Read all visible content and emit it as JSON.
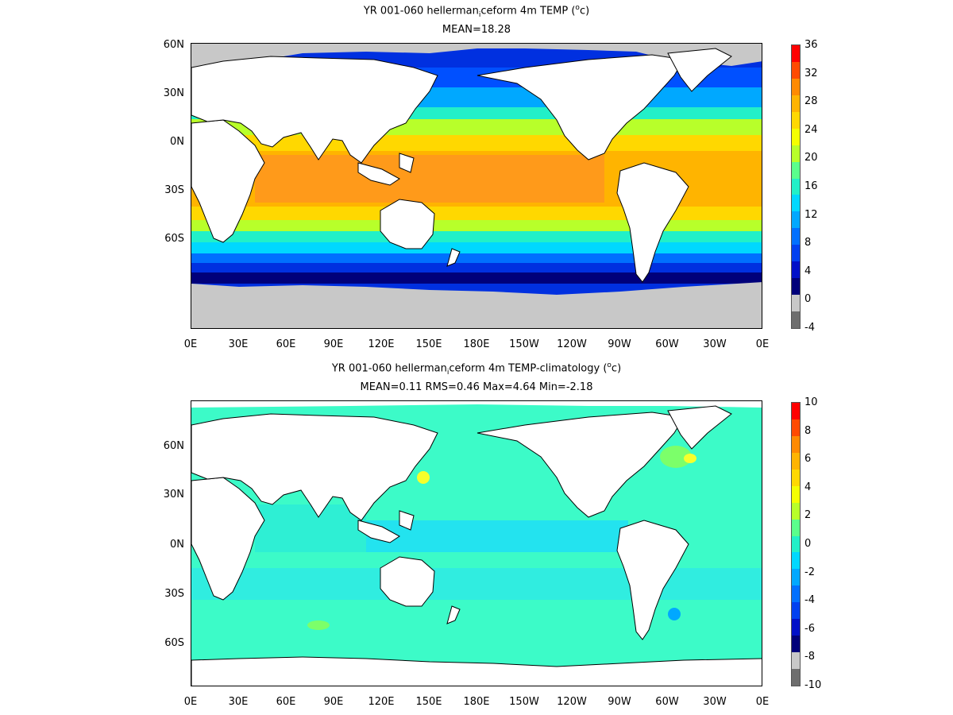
{
  "panels": [
    {
      "title_main": "YR 001-060 hellerman",
      "title_sub": "i",
      "title_rest": "ceform 4m TEMP (",
      "title_sup": "o",
      "title_end": "c)",
      "subtitle": "MEAN=18.28",
      "colorbar_labels": [
        "36",
        "32",
        "28",
        "24",
        "20",
        "16",
        "12",
        "8",
        "4",
        "0",
        "-4"
      ],
      "colorbar_colors": [
        "#ff0000",
        "#ff4a00",
        "#ff8a00",
        "#ffb400",
        "#ffd800",
        "#f4ff00",
        "#b8ff2a",
        "#5aff8c",
        "#22f0c8",
        "#00d8ff",
        "#00a8ff",
        "#0070ff",
        "#0040f0",
        "#0010c8",
        "#00007a",
        "#c8c8c8",
        "#6e6e6e"
      ],
      "colors": {
        "tropics": "#ff9a1a",
        "warm": "#ffd200",
        "mid": "#3cffb4",
        "cool": "#00b4ff",
        "cold": "#0020d0",
        "polar": "#000090",
        "ice": "#c8c8c8",
        "land": "#ffffff"
      }
    },
    {
      "title_main": "YR 001-060 hellerman",
      "title_sub": "i",
      "title_rest": "ceform 4m TEMP-climatology (",
      "title_sup": "o",
      "title_end": "c)",
      "subtitle": "MEAN=0.11   RMS=0.46   Max=4.64   Min=-2.18",
      "colorbar_labels": [
        "10",
        "8",
        "6",
        "4",
        "2",
        "0",
        "-2",
        "-4",
        "-6",
        "-8",
        "-10"
      ],
      "colorbar_colors": [
        "#ff0000",
        "#ff4a00",
        "#ff8a00",
        "#ffb400",
        "#ffd800",
        "#f4ff00",
        "#b8ff2a",
        "#5aff8c",
        "#22f0c8",
        "#00d8ff",
        "#00a8ff",
        "#0070ff",
        "#0040f0",
        "#0010c8",
        "#00007a",
        "#c8c8c8",
        "#6e6e6e"
      ],
      "colors": {
        "base": "#3cfbc8",
        "blue": "#18d8ff",
        "green": "#7cff6a",
        "yellow": "#f6ff2c",
        "land": "#ffffff"
      }
    }
  ],
  "lat_ticks": [
    "60N",
    "30N",
    "0N",
    "30S",
    "60S"
  ],
  "lon_ticks": [
    "0E",
    "30E",
    "60E",
    "90E",
    "120E",
    "150E",
    "180E",
    "150W",
    "120W",
    "90W",
    "60W",
    "30W",
    "0E"
  ]
}
